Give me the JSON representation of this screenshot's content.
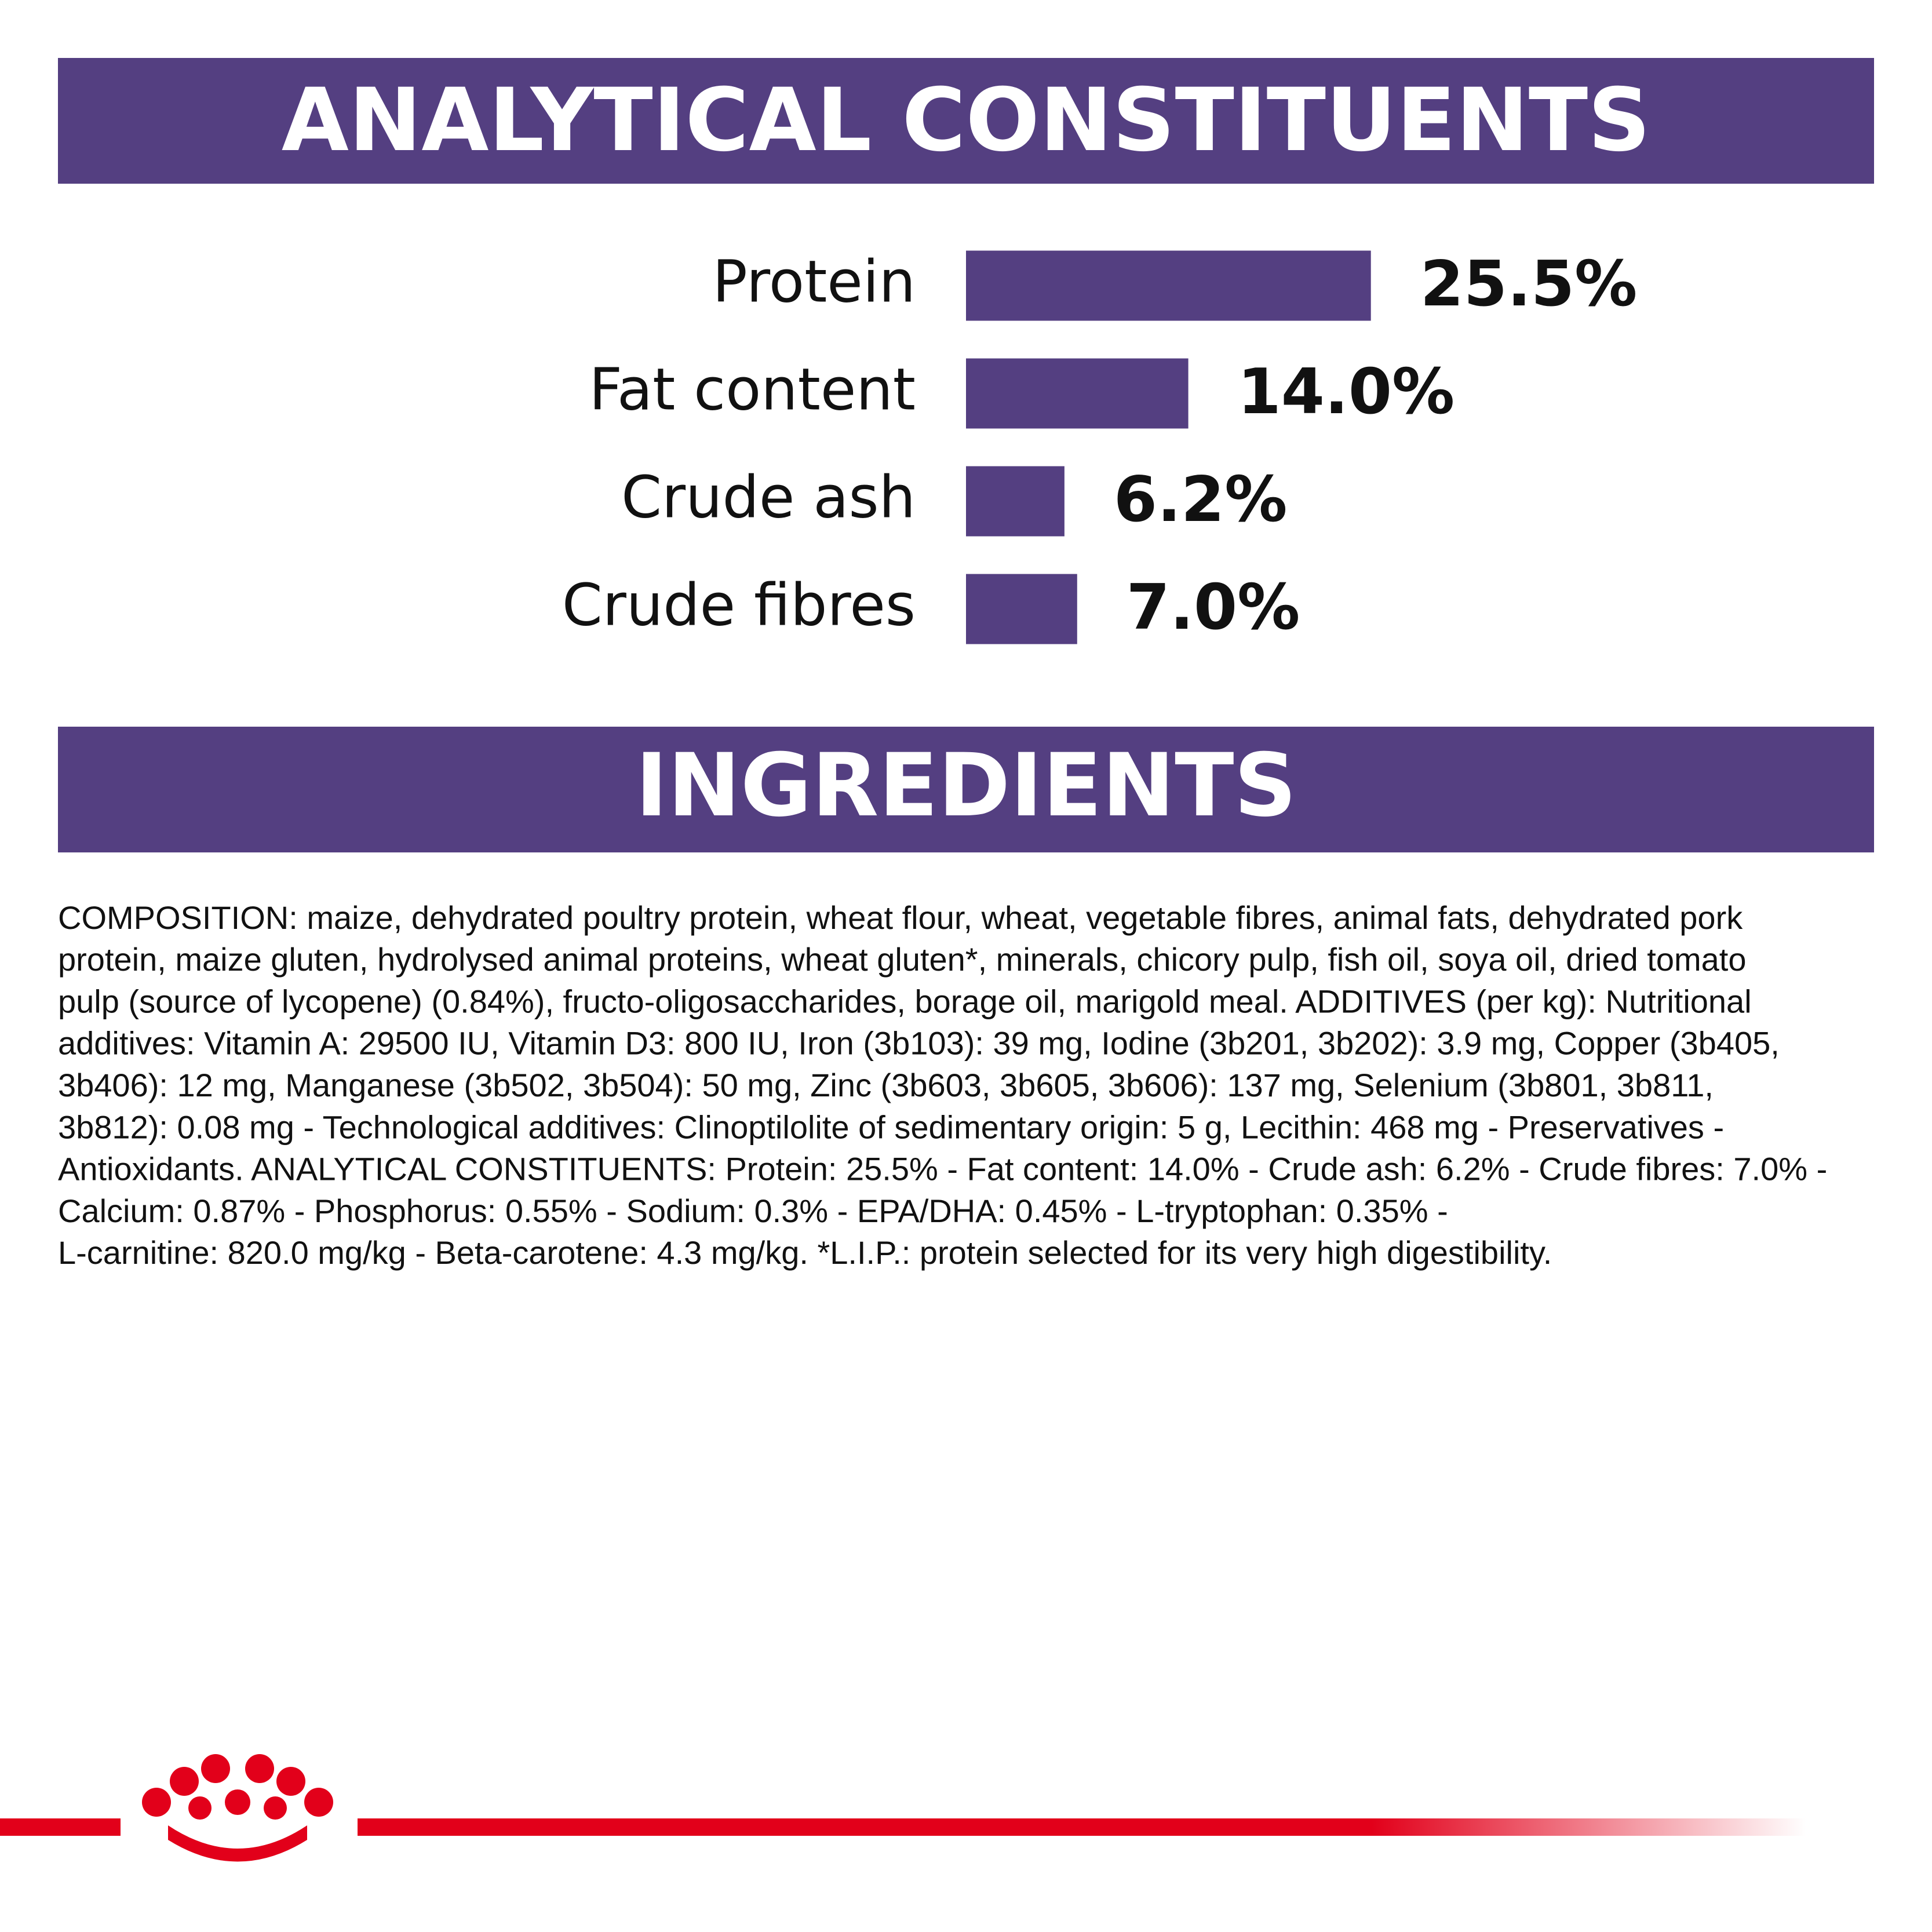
{
  "chart_data": {
    "type": "bar",
    "orientation": "horizontal",
    "title": "ANALYTICAL CONSTITUENTS",
    "categories": [
      "Protein",
      "Fat content",
      "Crude ash",
      "Crude fibres"
    ],
    "values": [
      25.5,
      14.0,
      6.2,
      7.0
    ],
    "value_labels": [
      "25.5%",
      "14.0%",
      "6.2%",
      "7.0%"
    ],
    "color": "#543f81"
  },
  "ingredients": {
    "title": "INGREDIENTS",
    "lines": [
      "COMPOSITION: maize, dehydrated poultry protein, wheat flour, wheat, vegetable fibres, animal fats, dehydrated pork",
      "protein, maize gluten, hydrolysed animal proteins, wheat gluten*, minerals, chicory pulp, fish oil, soya oil, dried tomato",
      "pulp (source of lycopene) (0.84%), fructo-oligosaccharides, borage oil, marigold meal. ADDITIVES (per kg): Nutritional",
      "additives: Vitamin A: 29500 IU, Vitamin D3: 800 IU, Iron (3b103): 39 mg, Iodine (3b201, 3b202): 3.9 mg, Copper (3b405,",
      "3b406): 12 mg, Manganese (3b502, 3b504): 50 mg, Zinc (3b603, 3b605, 3b606): 137 mg, Selenium (3b801, 3b811,",
      "3b812): 0.08 mg - Technological additives: Clinoptilolite of sedimentary origin: 5 g, Lecithin: 468 mg - Preservatives -",
      "Antioxidants. ANALYTICAL CONSTITUENTS: Protein: 25.5% - Fat content: 14.0% - Crude ash: 6.2% - Crude fibres: 7.0% -",
      "Calcium: 0.87% - Phosphorus: 0.55% - Sodium: 0.3% - EPA/DHA: 0.45% - L-tryptophan: 0.35% -",
      "L-carnitine: 820.0 mg/kg - Beta-carotene: 4.3 mg/kg. *L.I.P.: protein selected for its very high digestibility."
    ]
  }
}
